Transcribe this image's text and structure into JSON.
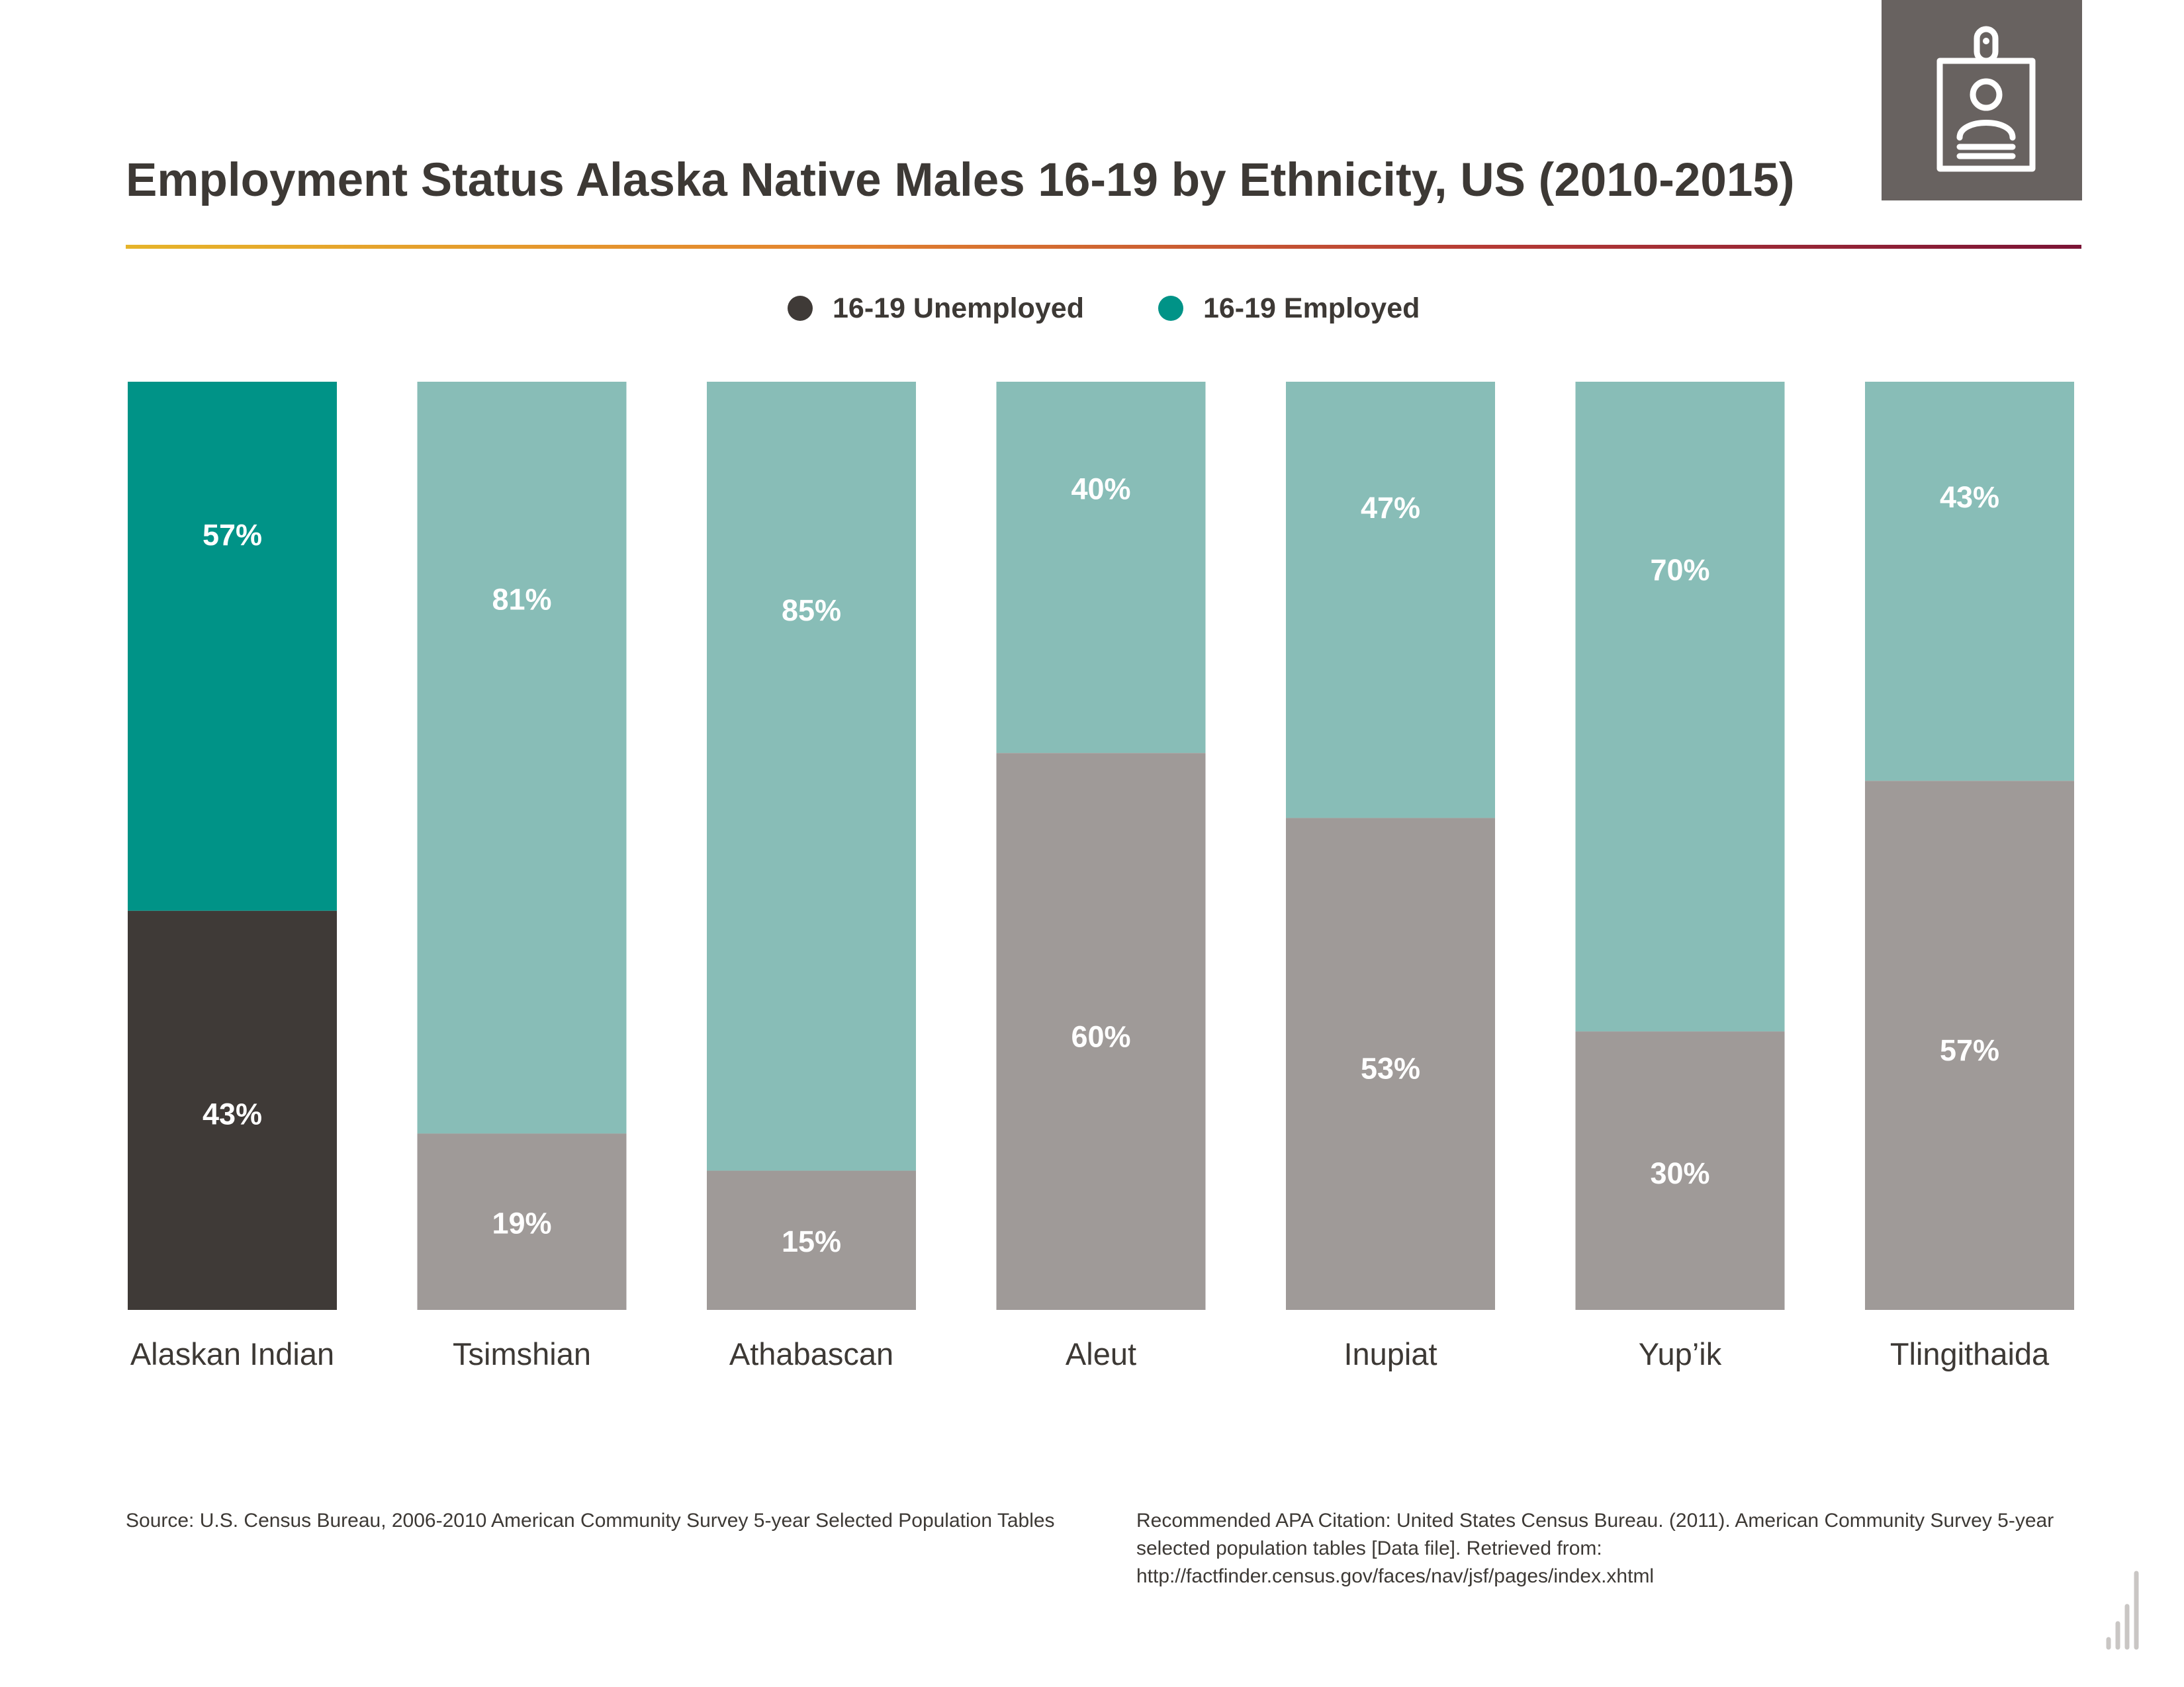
{
  "title": "Employment Status Alaska Native Males 16-19 by Ethnicity, US (2010-2015)",
  "icon": "id-badge-person-icon",
  "colors": {
    "unemployed_dark": "#3f3a37",
    "employed_dark": "#009387",
    "unemployed_muted": "#9f9a98",
    "employed_muted": "#88bdb7",
    "label_text": "#ffffff",
    "icon_box": "#686260",
    "legend_unemployed_dot": "#3f3a37",
    "legend_employed_dot": "#009387"
  },
  "legend": {
    "unemployed": "16-19 Unemployed",
    "employed": "16-19 Employed"
  },
  "chart_data": {
    "type": "bar",
    "stacked": true,
    "normalized": true,
    "categories": [
      "Alaskan Indian",
      "Tsimshian",
      "Athabascan",
      "Aleut",
      "Inupiat",
      "Yup’ik",
      "Tlingithaida"
    ],
    "series": [
      {
        "name": "16-19 Unemployed",
        "values": [
          43,
          19,
          15,
          60,
          53,
          30,
          57
        ],
        "labels": [
          "43%",
          "19%",
          "15%",
          "60%",
          "53%",
          "30%",
          "57%"
        ]
      },
      {
        "name": "16-19 Employed",
        "values": [
          57,
          81,
          85,
          40,
          47,
          70,
          43
        ],
        "labels": [
          "57%",
          "81%",
          "85%",
          "40%",
          "47%",
          "70%",
          "43%"
        ]
      }
    ],
    "highlighted_category": "Alaskan Indian",
    "ylim": [
      0,
      100
    ],
    "legend_position": "top-center",
    "grid": false
  },
  "footer": {
    "source": "Source:  U.S. Census Bureau, 2006-2010 American Community Survey 5-year Selected Population Tables",
    "citation": "Recommended APA Citation: United States Census Bureau. (2011). American Community Survey 5-year selected population tables [Data file]. Retrieved from: http://factfinder.census.gov/faces/nav/jsf/pages/index.xhtml"
  },
  "corner_logo_icon": "bar-growth-logo-icon"
}
